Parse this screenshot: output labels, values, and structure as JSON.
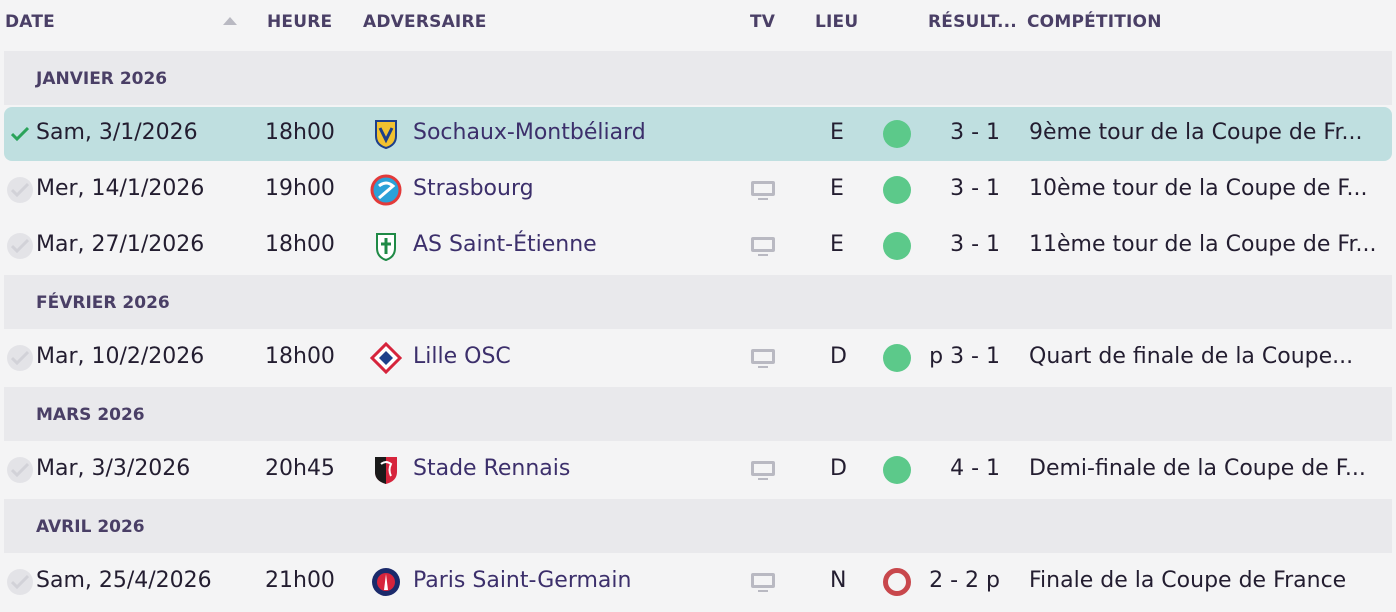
{
  "columns": {
    "date": "DATE",
    "time": "HEURE",
    "opponent": "ADVERSAIRE",
    "tv": "TV",
    "venue": "LIEU",
    "result": "RÉSULT...",
    "competition": "COMPÉTITION"
  },
  "months": [
    {
      "label": "JANVIER 2026"
    },
    {
      "label": "FÉVRIER 2026"
    },
    {
      "label": "MARS 2026"
    },
    {
      "label": "AVRIL 2026"
    }
  ],
  "matches": [
    {
      "date": "Sam, 3/1/2026",
      "time": "18h00",
      "opponent": "Sochaux-Montbéliard",
      "crest": "sochaux-crest",
      "tv": false,
      "venue": "E",
      "outcome": "win",
      "result": "3 - 1",
      "competition": "9ème tour de la Coupe de Fr..."
    },
    {
      "date": "Mer, 14/1/2026",
      "time": "19h00",
      "opponent": "Strasbourg",
      "crest": "strasbourg-crest",
      "tv": true,
      "venue": "E",
      "outcome": "win",
      "result": "3 - 1",
      "competition": "10ème tour de la Coupe de F..."
    },
    {
      "date": "Mar, 27/1/2026",
      "time": "18h00",
      "opponent": "AS Saint-Étienne",
      "crest": "saint-etienne-crest",
      "tv": true,
      "venue": "E",
      "outcome": "win",
      "result": "3 - 1",
      "competition": "11ème tour de la Coupe de Fr..."
    },
    {
      "date": "Mar, 10/2/2026",
      "time": "18h00",
      "opponent": "Lille OSC",
      "crest": "lille-crest",
      "tv": true,
      "venue": "D",
      "outcome": "win",
      "result": "p 3 - 1",
      "competition": "Quart de finale de la Coupe..."
    },
    {
      "date": "Mar, 3/3/2026",
      "time": "20h45",
      "opponent": "Stade Rennais",
      "crest": "rennes-crest",
      "tv": true,
      "venue": "D",
      "outcome": "win",
      "result": "4 - 1",
      "competition": "Demi-finale de la Coupe de F..."
    },
    {
      "date": "Sam, 25/4/2026",
      "time": "21h00",
      "opponent": "Paris Saint-Germain",
      "crest": "psg-crest",
      "tv": true,
      "venue": "N",
      "outcome": "draw",
      "result": "2 - 2 p",
      "competition": "Finale de la Coupe de France"
    }
  ],
  "colors": {
    "win": "#5cc98a",
    "draw": "#c8474c",
    "selected_row": "#bfdfe0",
    "check": "#2aa35a"
  }
}
